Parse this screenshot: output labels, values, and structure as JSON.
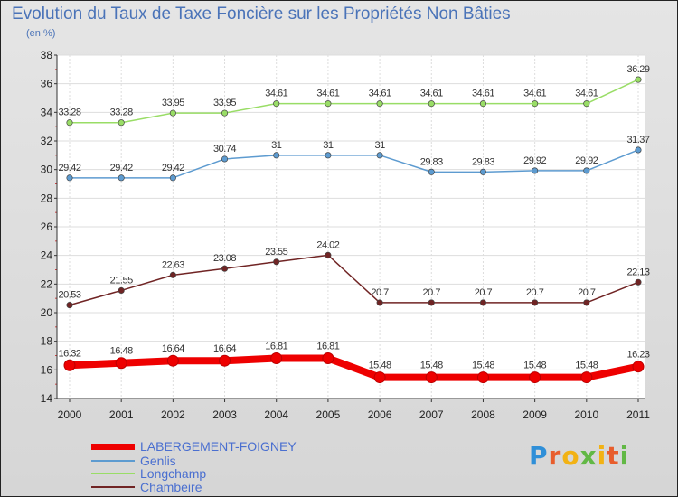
{
  "title": "Evolution du Taux de Taxe Foncière sur les Propriétés Non Bâties",
  "unit_label": "(en %)",
  "logo_text": "Proxiti",
  "chart_data": {
    "type": "line",
    "x": [
      "2000",
      "2001",
      "2002",
      "2003",
      "2004",
      "2005",
      "2006",
      "2007",
      "2008",
      "2009",
      "2010",
      "2011"
    ],
    "ylim": [
      14,
      38
    ],
    "yticks": [
      "14",
      "16",
      "18",
      "20",
      "22",
      "24",
      "26",
      "28",
      "30",
      "32",
      "34",
      "36",
      "38"
    ],
    "grid": true,
    "series": [
      {
        "name": "LABERGEMENT-FOIGNEY",
        "color": "#ee0000",
        "values": [
          16.32,
          16.48,
          16.64,
          16.64,
          16.81,
          16.81,
          15.48,
          15.48,
          15.48,
          15.48,
          15.48,
          16.23
        ],
        "labels": [
          "16.32",
          "16.48",
          "16.64",
          "16.64",
          "16.81",
          "16.81",
          "15.48",
          "15.48",
          "15.48",
          "15.48",
          "15.48",
          "16.23"
        ]
      },
      {
        "name": "Genlis",
        "color": "#5d9bd0",
        "values": [
          29.42,
          29.42,
          29.42,
          30.74,
          31,
          31,
          31,
          29.83,
          29.83,
          29.92,
          29.92,
          31.37
        ],
        "labels": [
          "29.42",
          "29.42",
          "29.42",
          "30.74",
          "31",
          "31",
          "31",
          "29.83",
          "29.83",
          "29.92",
          "29.92",
          "31.37"
        ]
      },
      {
        "name": "Longchamp",
        "color": "#99dd66",
        "values": [
          33.28,
          33.28,
          33.95,
          33.95,
          34.61,
          34.61,
          34.61,
          34.61,
          34.61,
          34.61,
          34.61,
          36.29
        ],
        "labels": [
          "33.28",
          "33.28",
          "33.95",
          "33.95",
          "34.61",
          "34.61",
          "34.61",
          "34.61",
          "34.61",
          "34.61",
          "34.61",
          "36.29"
        ]
      },
      {
        "name": "Chambeire",
        "color": "#702424",
        "values": [
          20.53,
          21.55,
          22.63,
          23.08,
          23.55,
          24.02,
          20.7,
          20.7,
          20.7,
          20.7,
          20.7,
          22.13
        ],
        "labels": [
          "20.53",
          "21.55",
          "22.63",
          "23.08",
          "23.55",
          "24.02",
          "20.7",
          "20.7",
          "20.7",
          "20.7",
          "20.7",
          "22.13"
        ]
      }
    ]
  },
  "legend": [
    {
      "label": "LABERGEMENT-FOIGNEY",
      "color": "#ee0000"
    },
    {
      "label": "Genlis",
      "color": "#5d9bd0"
    },
    {
      "label": "Longchamp",
      "color": "#99dd66"
    },
    {
      "label": "Chambeire",
      "color": "#702424"
    }
  ]
}
